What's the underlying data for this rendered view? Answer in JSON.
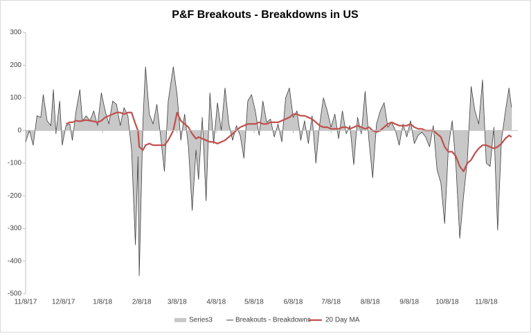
{
  "chart_data": {
    "type": "line",
    "title": "P&F Breakouts - Breakdowns in US",
    "x": [
      "11/8/17",
      "11/11/17",
      "11/14/17",
      "11/17/17",
      "11/20/17",
      "11/22/17",
      "11/25/17",
      "11/28/17",
      "11/30/17",
      "12/2/17",
      "12/5/17",
      "12/7/17",
      "12/10/17",
      "12/13/17",
      "12/15/17",
      "12/18/17",
      "12/21/17",
      "12/23/17",
      "12/26/17",
      "12/29/17",
      "1/1/18",
      "1/4/18",
      "1/7/18",
      "1/10/18",
      "1/13/18",
      "1/16/18",
      "1/19/18",
      "1/22/18",
      "1/25/18",
      "1/28/18",
      "1/31/18",
      "2/3/18",
      "2/5/18",
      "2/6/18",
      "2/9/18",
      "2/11/18",
      "2/14/18",
      "2/17/18",
      "2/20/18",
      "2/23/18",
      "2/26/18",
      "3/1/18",
      "3/5/18",
      "3/8/18",
      "3/11/18",
      "3/14/18",
      "3/17/18",
      "3/20/18",
      "3/23/18",
      "3/25/18",
      "3/28/18",
      "3/31/18",
      "4/3/18",
      "4/6/18",
      "4/9/18",
      "4/12/18",
      "4/15/18",
      "4/18/18",
      "4/21/18",
      "4/24/18",
      "4/27/18",
      "4/30/18",
      "5/3/18",
      "5/6/18",
      "5/9/18",
      "5/12/18",
      "5/15/18",
      "5/18/18",
      "5/21/18",
      "5/24/18",
      "5/27/18",
      "5/30/18",
      "6/2/18",
      "6/5/18",
      "6/8/18",
      "6/11/18",
      "6/14/18",
      "6/17/18",
      "6/20/18",
      "6/23/18",
      "6/26/18",
      "6/29/18",
      "7/2/18",
      "7/5/18",
      "7/8/18",
      "7/11/18",
      "7/14/18",
      "7/17/18",
      "7/20/18",
      "7/23/18",
      "7/26/18",
      "7/29/18",
      "8/1/18",
      "8/4/18",
      "8/7/18",
      "8/10/18",
      "8/13/18",
      "8/16/18",
      "8/19/18",
      "8/22/18",
      "8/25/18",
      "8/28/18",
      "8/31/18",
      "9/3/18",
      "9/6/18",
      "9/9/18",
      "9/12/18",
      "9/15/18",
      "9/18/18",
      "9/21/18",
      "9/24/18",
      "9/27/18",
      "9/30/18",
      "10/3/18",
      "10/6/18",
      "10/9/18",
      "10/12/18",
      "10/15/18",
      "10/18/18",
      "10/21/18",
      "10/24/18",
      "10/27/18",
      "10/30/18",
      "11/2/18",
      "11/5/18",
      "11/8/18",
      "11/11/18",
      "11/14/18",
      "11/17/18",
      "11/20/18",
      "11/23/18",
      "11/26/18",
      "11/28/18"
    ],
    "series": [
      {
        "name": "Series3",
        "color": "#c8c8c8",
        "style": "area",
        "values": [
          -35,
          0,
          -45,
          45,
          40,
          110,
          30,
          15,
          125,
          -10,
          90,
          -45,
          15,
          20,
          -30,
          60,
          125,
          30,
          45,
          30,
          60,
          15,
          115,
          60,
          20,
          90,
          80,
          15,
          70,
          45,
          -60,
          -350,
          -80,
          -445,
          30,
          195,
          50,
          20,
          80,
          -20,
          -125,
          90,
          195,
          110,
          -30,
          50,
          -50,
          -245,
          -60,
          -150,
          40,
          -215,
          115,
          -40,
          85,
          0,
          130,
          20,
          -30,
          15,
          -15,
          -85,
          90,
          110,
          60,
          -15,
          90,
          25,
          35,
          -20,
          20,
          -35,
          100,
          130,
          40,
          60,
          -30,
          30,
          -40,
          45,
          -100,
          20,
          100,
          60,
          10,
          50,
          -25,
          60,
          -10,
          15,
          -105,
          40,
          -10,
          120,
          -30,
          -145,
          20,
          60,
          85,
          10,
          25,
          0,
          -45,
          20,
          -20,
          30,
          -40,
          -15,
          -5,
          -20,
          -50,
          15,
          -120,
          -160,
          -285,
          -50,
          30,
          -110,
          -330,
          -200,
          -90,
          135,
          60,
          20,
          155,
          -100,
          -110,
          10,
          -305,
          -30,
          55,
          130,
          70
        ]
      },
      {
        "name": "Breakouts - Breakdowns",
        "color": "#404040",
        "style": "line",
        "values": [
          -35,
          0,
          -45,
          45,
          40,
          110,
          30,
          15,
          125,
          -10,
          90,
          -45,
          15,
          20,
          -30,
          60,
          125,
          30,
          45,
          30,
          60,
          15,
          115,
          60,
          20,
          90,
          80,
          15,
          70,
          45,
          -60,
          -350,
          -80,
          -445,
          30,
          195,
          50,
          20,
          80,
          -20,
          -125,
          90,
          195,
          110,
          -30,
          50,
          -50,
          -245,
          -60,
          -150,
          40,
          -215,
          115,
          -40,
          85,
          0,
          130,
          20,
          -30,
          15,
          -15,
          -85,
          90,
          110,
          60,
          -15,
          90,
          25,
          35,
          -20,
          20,
          -35,
          100,
          130,
          40,
          60,
          -30,
          30,
          -40,
          45,
          -100,
          20,
          100,
          60,
          10,
          50,
          -25,
          60,
          -10,
          15,
          -105,
          40,
          -10,
          120,
          -30,
          -145,
          20,
          60,
          85,
          10,
          25,
          0,
          -45,
          20,
          -20,
          30,
          -40,
          -15,
          -5,
          -20,
          -50,
          15,
          -120,
          -160,
          -285,
          -50,
          30,
          -110,
          -330,
          -200,
          -90,
          135,
          60,
          20,
          155,
          -100,
          -110,
          10,
          -305,
          -30,
          55,
          130,
          70
        ]
      },
      {
        "name": "20 Day MA",
        "color": "#c0504d",
        "style": "ma",
        "values": [
          null,
          null,
          null,
          null,
          null,
          null,
          null,
          null,
          null,
          null,
          null,
          null,
          20,
          25,
          25,
          30,
          28,
          30,
          32,
          30,
          28,
          25,
          30,
          40,
          45,
          50,
          55,
          55,
          50,
          55,
          55,
          20,
          0,
          -50,
          -60,
          -45,
          -40,
          -45,
          -45,
          -45,
          -45,
          -30,
          0,
          55,
          30,
          20,
          10,
          -10,
          -25,
          -20,
          -25,
          -30,
          -35,
          -35,
          -40,
          -35,
          -30,
          -20,
          -10,
          0,
          10,
          15,
          20,
          20,
          20,
          25,
          20,
          20,
          25,
          25,
          25,
          30,
          35,
          40,
          50,
          50,
          45,
          45,
          40,
          35,
          25,
          15,
          10,
          10,
          5,
          5,
          5,
          10,
          10,
          5,
          10,
          15,
          10,
          5,
          10,
          0,
          -5,
          0,
          10,
          20,
          25,
          20,
          15,
          15,
          15,
          20,
          10,
          5,
          5,
          0,
          0,
          0,
          -10,
          -20,
          -50,
          -65,
          -65,
          -80,
          -110,
          -125,
          -100,
          -90,
          -70,
          -55,
          -45,
          -45,
          -50,
          -55,
          -50,
          -40,
          -25,
          -15,
          -20
        ]
      }
    ],
    "xlim": [
      "11/8/17",
      "12/3/18"
    ],
    "xticks": [
      "11/8/17",
      "12/8/17",
      "1/8/18",
      "2/8/18",
      "3/8/18",
      "4/8/18",
      "5/8/18",
      "6/8/18",
      "7/8/18",
      "8/8/18",
      "9/8/18",
      "10/8/18",
      "11/8/18"
    ],
    "ylim": [
      -500,
      300
    ],
    "yticks": [
      -500,
      -400,
      -300,
      -200,
      -100,
      0,
      100,
      200,
      300
    ]
  }
}
